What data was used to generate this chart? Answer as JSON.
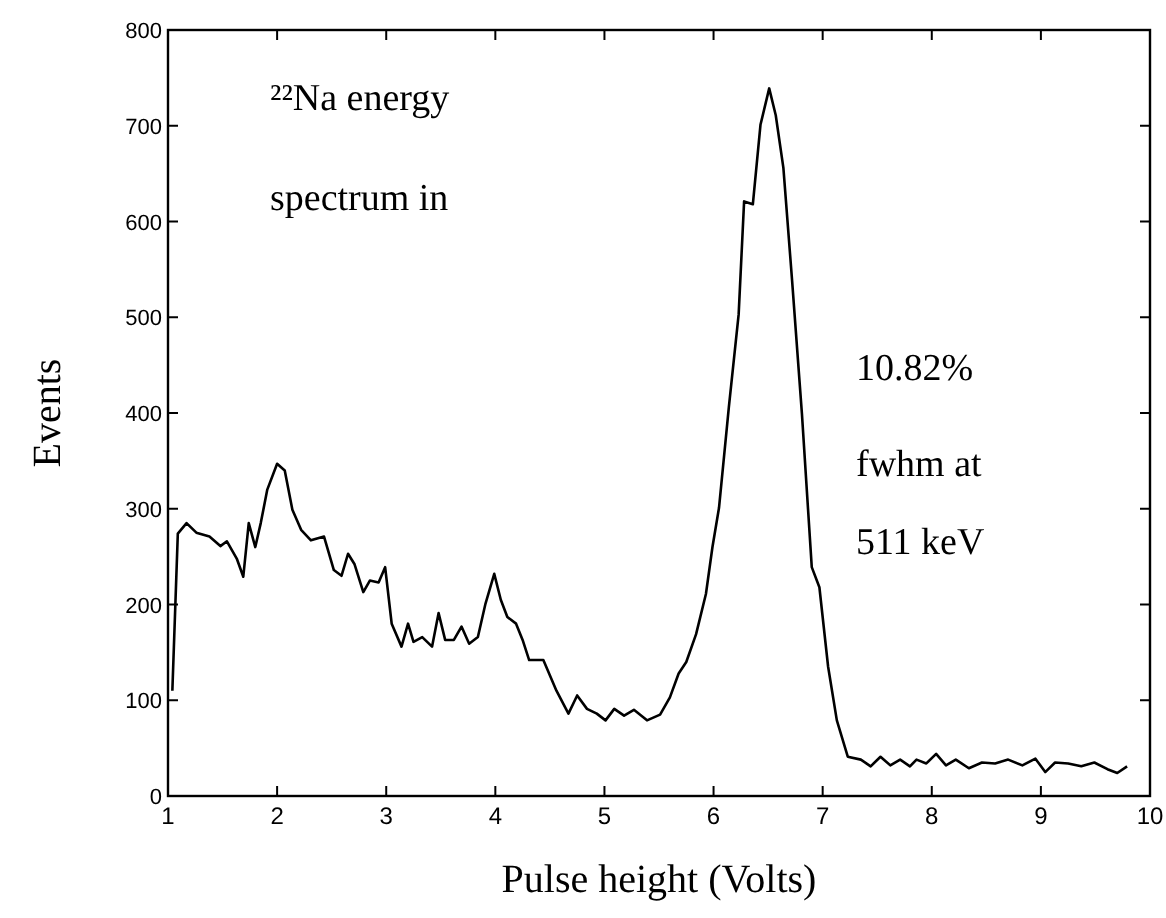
{
  "chart_data": {
    "type": "line",
    "xlabel": "Pulse height (Volts)",
    "ylabel": "Events",
    "annotations": [
      "²²Na energy",
      "spectrum in",
      "10.82%",
      "fwhm at",
      "511 keV"
    ],
    "xlim": [
      1,
      10
    ],
    "ylim": [
      0,
      800
    ],
    "xticks": [
      1,
      2,
      3,
      4,
      5,
      6,
      7,
      8,
      9,
      10
    ],
    "yticks": [
      0,
      100,
      200,
      300,
      400,
      500,
      600,
      700,
      800
    ],
    "grid": false,
    "marker": "none",
    "line_style": "solid",
    "series": [
      {
        "color": "#000000",
        "x": [
          1.04,
          1.09,
          1.17,
          1.26,
          1.38,
          1.48,
          1.54,
          1.63,
          1.69,
          1.74,
          1.8,
          1.85,
          1.91,
          2.0,
          2.07,
          2.14,
          2.22,
          2.31,
          2.43,
          2.52,
          2.59,
          2.65,
          2.71,
          2.79,
          2.85,
          2.93,
          2.99,
          3.05,
          3.14,
          3.2,
          3.25,
          3.33,
          3.42,
          3.48,
          3.54,
          3.62,
          3.69,
          3.76,
          3.84,
          3.91,
          3.99,
          4.05,
          4.11,
          4.19,
          4.25,
          4.31,
          4.44,
          4.56,
          4.67,
          4.75,
          4.84,
          4.93,
          5.01,
          5.09,
          5.18,
          5.27,
          5.39,
          5.51,
          5.6,
          5.68,
          5.75,
          5.84,
          5.93,
          5.99,
          6.05,
          6.14,
          6.23,
          6.28,
          6.36,
          6.43,
          6.51,
          6.57,
          6.64,
          6.72,
          6.81,
          6.9,
          6.97,
          7.05,
          7.13,
          7.23,
          7.35,
          7.44,
          7.53,
          7.62,
          7.71,
          7.8,
          7.86,
          7.95,
          8.04,
          8.13,
          8.22,
          8.34,
          8.46,
          8.58,
          8.7,
          8.83,
          8.95,
          9.04,
          9.13,
          9.25,
          9.37,
          9.49,
          9.61,
          9.7,
          9.79
        ],
        "values": [
          110,
          274,
          285,
          275,
          271,
          261,
          266,
          248,
          229,
          285,
          260,
          285,
          320,
          347,
          340,
          299,
          278,
          267,
          271,
          236,
          230,
          253,
          242,
          213,
          225,
          223,
          239,
          180,
          156,
          180,
          161,
          166,
          156,
          191,
          163,
          163,
          177,
          159,
          166,
          201,
          232,
          205,
          187,
          180,
          163,
          142,
          142,
          110,
          86,
          105,
          91,
          86,
          79,
          91,
          84,
          90,
          79,
          85,
          103,
          128,
          140,
          169,
          211,
          260,
          301,
          406,
          503,
          621,
          618,
          701,
          739,
          711,
          656,
          538,
          399,
          239,
          218,
          135,
          79,
          41,
          38,
          31,
          41,
          32,
          38,
          31,
          38,
          34,
          44,
          32,
          38,
          29,
          35,
          34,
          38,
          32,
          39,
          25,
          35,
          34,
          31,
          35,
          28,
          24,
          31
        ]
      }
    ]
  }
}
